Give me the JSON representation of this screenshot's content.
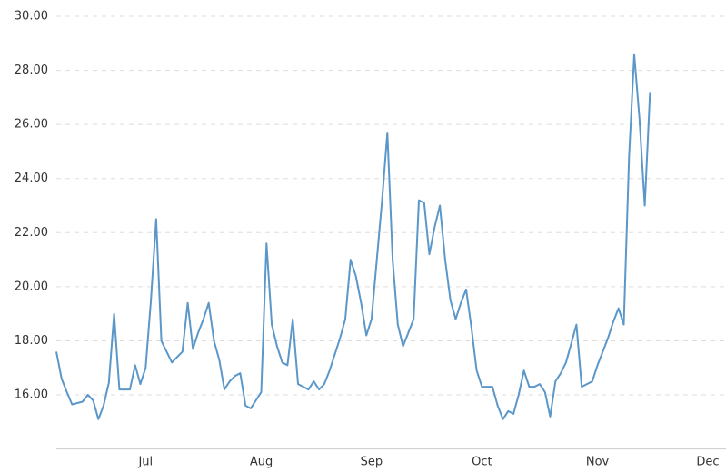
{
  "chart_data": {
    "type": "line",
    "categories": [
      null,
      null,
      null,
      null,
      null,
      null,
      null,
      null,
      null,
      null,
      null,
      null,
      null,
      null,
      null,
      null,
      null,
      "Jul",
      null,
      null,
      null,
      null,
      null,
      null,
      null,
      null,
      null,
      null,
      null,
      null,
      null,
      null,
      null,
      null,
      null,
      null,
      null,
      null,
      null,
      "Aug",
      null,
      null,
      null,
      null,
      null,
      null,
      null,
      null,
      null,
      null,
      null,
      null,
      null,
      null,
      null,
      null,
      null,
      null,
      null,
      null,
      "Sep",
      null,
      null,
      null,
      null,
      null,
      null,
      null,
      null,
      null,
      null,
      null,
      null,
      null,
      null,
      null,
      null,
      null,
      null,
      null,
      null,
      "Oct",
      null,
      null,
      null,
      null,
      null,
      null,
      null,
      null,
      null,
      null,
      null,
      null,
      null,
      null,
      null,
      null,
      null,
      null,
      null,
      null,
      null,
      "Nov",
      null,
      null,
      null,
      null,
      null,
      null,
      null,
      null,
      null,
      null,
      null,
      null,
      null,
      null,
      null,
      null,
      null,
      null,
      null,
      null,
      "Dec"
    ],
    "series": [
      {
        "color": "#5b97c9",
        "values": [
          17.6,
          16.6,
          16.1,
          15.65,
          15.7,
          15.75,
          16.0,
          15.8,
          15.1,
          15.6,
          16.45,
          19.0,
          16.2,
          16.2,
          16.2,
          17.1,
          16.4,
          17.0,
          19.5,
          22.5,
          18.0,
          17.6,
          17.2,
          17.4,
          17.6,
          19.4,
          17.7,
          18.3,
          18.8,
          19.4,
          18.0,
          17.3,
          16.2,
          16.5,
          16.7,
          16.8,
          15.6,
          15.5,
          15.8,
          16.1,
          21.6,
          18.6,
          17.8,
          17.2,
          17.1,
          18.8,
          16.4,
          16.3,
          16.2,
          16.5,
          16.2,
          16.4,
          16.9,
          17.5,
          18.1,
          18.8,
          21.0,
          20.4,
          19.4,
          18.2,
          18.8,
          21.0,
          23.2,
          25.7,
          21.0,
          18.6,
          17.8,
          18.3,
          18.8,
          23.2,
          23.1,
          21.2,
          22.2,
          23.0,
          21.0,
          19.5,
          18.8,
          19.4,
          19.9,
          18.5,
          16.9,
          16.3,
          16.3,
          16.3,
          15.6,
          15.1,
          15.4,
          15.3,
          16.0,
          16.9,
          16.3,
          16.3,
          16.4,
          16.1,
          15.2,
          16.5,
          16.8,
          17.2,
          17.9,
          18.6,
          16.3,
          16.4,
          16.5,
          17.1,
          17.6,
          18.1,
          18.7,
          19.2,
          18.6,
          24.8,
          28.6,
          26.2,
          23.0,
          27.2,
          null,
          null,
          null,
          null,
          null,
          null,
          null,
          null,
          null,
          null,
          null
        ]
      }
    ],
    "ylim": [
      14,
      30
    ],
    "yticks": [
      {
        "value": 16,
        "label": "16.00"
      },
      {
        "value": 18,
        "label": "18.00"
      },
      {
        "value": 20,
        "label": "20.00"
      },
      {
        "value": 22,
        "label": "22.00"
      },
      {
        "value": 24,
        "label": "24.00"
      },
      {
        "value": 26,
        "label": "26.00"
      },
      {
        "value": 28,
        "label": "28.00"
      },
      {
        "value": 30,
        "label": "30.00"
      }
    ],
    "grid": true
  }
}
